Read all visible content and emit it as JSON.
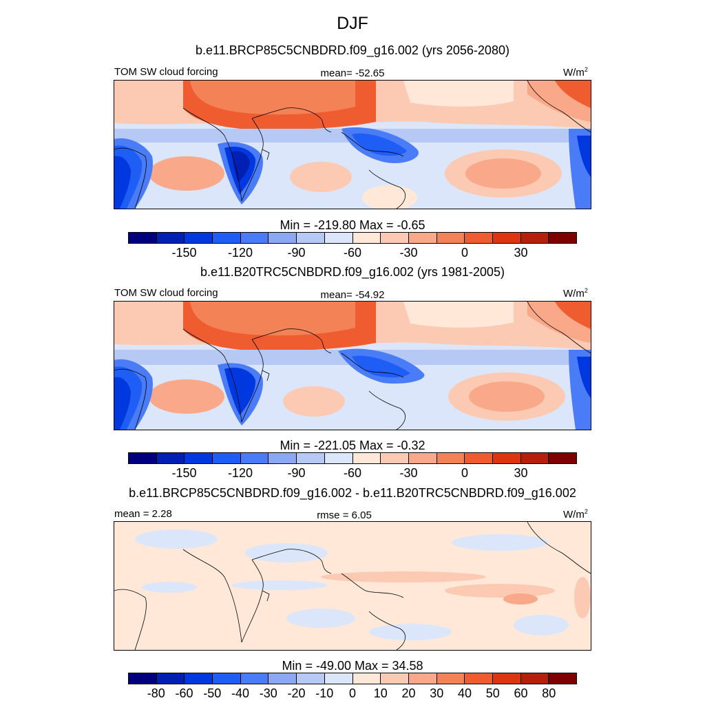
{
  "title": "DJF",
  "colors": [
    "#00007f",
    "#0020b4",
    "#0038e0",
    "#1e5ef5",
    "#4a7cf8",
    "#8ca8f3",
    "#b6c9f5",
    "#dbe6fb",
    "#ffe8d8",
    "#fccab2",
    "#f9a98a",
    "#f38256",
    "#ef5c2f",
    "#dc3510",
    "#b5200a",
    "#7f0000"
  ],
  "panels": [
    {
      "title": "b.e11.BRCP85C5CNBDRD.f09_g16.002 (yrs 2056-2080)",
      "left_label": "TOM SW cloud forcing",
      "center_label": "mean= -52.65",
      "units": "W/m",
      "units_sup": "2",
      "minmax": "Min = -219.80 Max =  -0.65",
      "ticks": [
        "-150",
        "-120",
        "-90",
        "-60",
        "-30",
        "0",
        "30"
      ]
    },
    {
      "title": "b.e11.B20TRC5CNBDRD.f09_g16.002 (yrs 1981-2005)",
      "left_label": "TOM SW cloud forcing",
      "center_label": "mean= -54.92",
      "units": "W/m",
      "units_sup": "2",
      "minmax": "Min = -221.05 Max =  -0.32",
      "ticks": [
        "-150",
        "-120",
        "-90",
        "-60",
        "-30",
        "0",
        "30"
      ]
    },
    {
      "title": "b.e11.BRCP85C5CNBDRD.f09_g16.002 - b.e11.B20TRC5CNBDRD.f09_g16.002",
      "left_label": "mean =   2.28",
      "center_label": "rmse =   6.05",
      "units": "W/m",
      "units_sup": "2",
      "minmax": "Min = -49.00 Max =  34.58",
      "ticks": [
        "-80",
        "-60",
        "-50",
        "-40",
        "-30",
        "-20",
        "-10",
        "0",
        "10",
        "20",
        "30",
        "40",
        "50",
        "60",
        "80"
      ]
    }
  ]
}
